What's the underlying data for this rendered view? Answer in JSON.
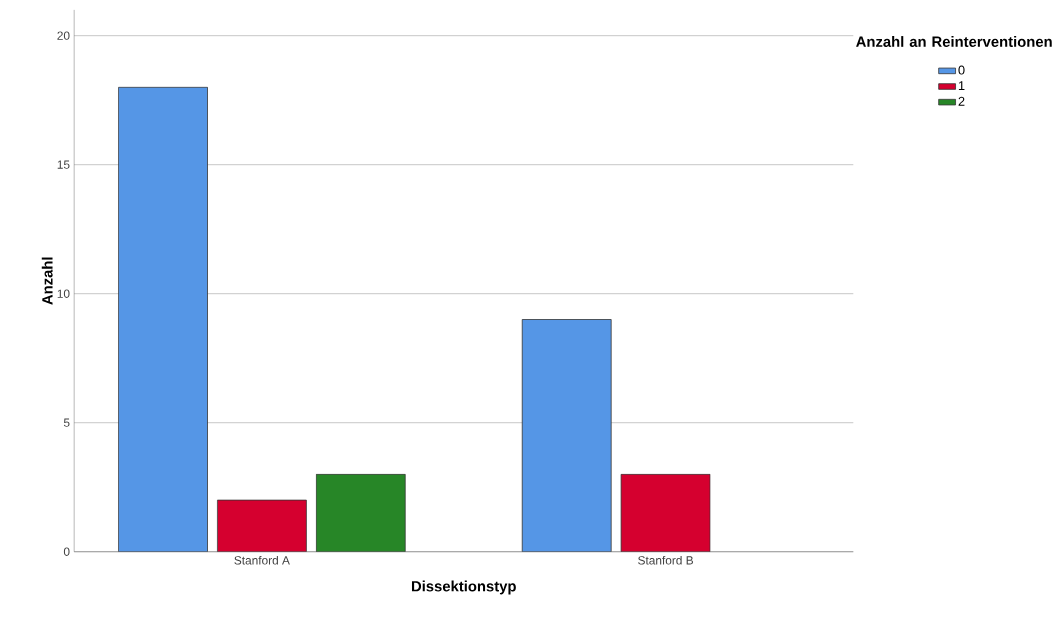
{
  "chart_data": {
    "type": "bar",
    "xlabel": "Dissektionstyp",
    "ylabel": "Anzahl",
    "legend_title": "Anzahl an Reinterventionen",
    "categories": [
      "Stanford A",
      "Stanford B"
    ],
    "series": [
      {
        "name": "0",
        "color": "#5596e6",
        "values": [
          18,
          9
        ]
      },
      {
        "name": "1",
        "color": "#d5002f",
        "values": [
          2,
          3
        ]
      },
      {
        "name": "2",
        "color": "#278627",
        "values": [
          3,
          null
        ]
      }
    ],
    "ylim": [
      0,
      21
    ],
    "yticks": [
      0,
      5,
      10,
      15,
      20
    ],
    "grid": "y",
    "legend": "top right"
  }
}
